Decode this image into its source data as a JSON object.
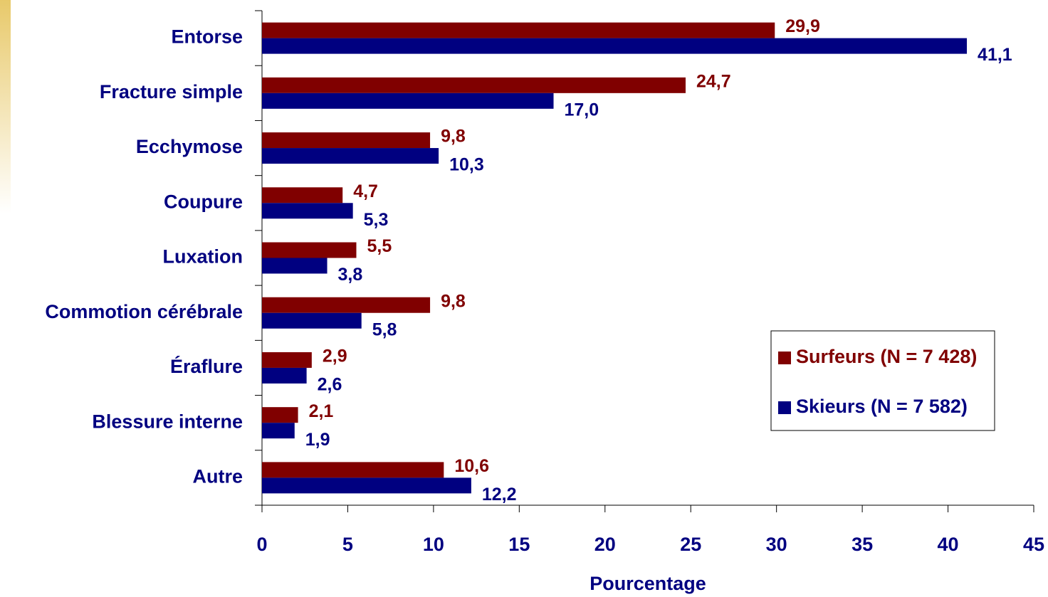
{
  "chart_data": {
    "type": "bar",
    "orientation": "horizontal",
    "x_label": "Pourcentage",
    "categories": [
      "Entorse",
      "Fracture simple",
      "Ecchymose",
      "Coupure",
      "Luxation",
      "Commotion cérébrale",
      "Éraflure",
      "Blessure interne",
      "Autre"
    ],
    "series": [
      {
        "name": "Surfeurs (N = 7 428)",
        "color": "#800000",
        "values": [
          29.9,
          24.7,
          9.8,
          4.7,
          5.5,
          9.8,
          2.9,
          2.1,
          10.6
        ],
        "value_labels": [
          "29,9",
          "24,7",
          "9,8",
          "4,7",
          "5,5",
          "9,8",
          "2,9",
          "2,1",
          "10,6"
        ]
      },
      {
        "name": "Skieurs (N = 7 582)",
        "color": "#000080",
        "values": [
          41.1,
          17.0,
          10.3,
          5.3,
          3.8,
          5.8,
          2.6,
          1.9,
          12.2
        ],
        "value_labels": [
          "41,1",
          "17,0",
          "10,3",
          "5,3",
          "3,8",
          "5,8",
          "2,6",
          "1,9",
          "12,2"
        ]
      }
    ],
    "xlim": [
      0,
      45
    ],
    "xticks": [
      0,
      5,
      10,
      15,
      20,
      25,
      30,
      35,
      40,
      45
    ],
    "grid": false,
    "legend": "right"
  }
}
